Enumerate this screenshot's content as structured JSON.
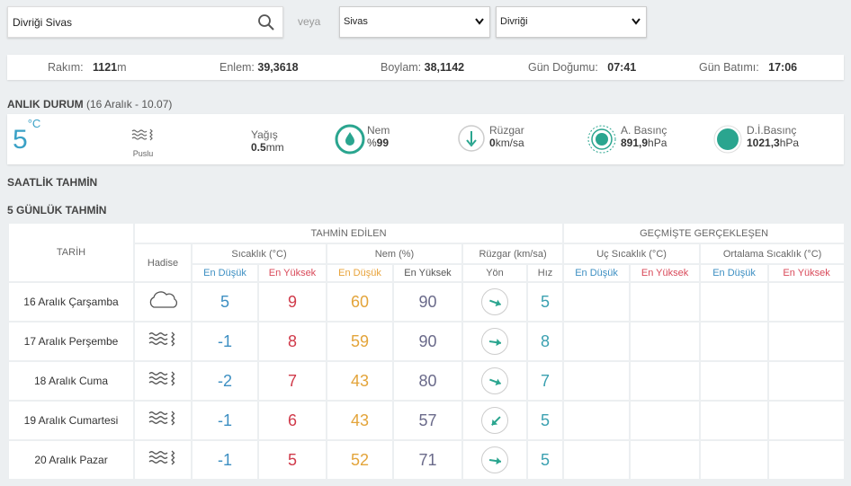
{
  "search": {
    "value": "Divriği Sivas"
  },
  "veya": "veya",
  "selects": {
    "city": "Sivas",
    "district": "Divriği"
  },
  "info": {
    "rakim_label": "Rakım:",
    "rakim_value": "1121",
    "rakim_unit": "m",
    "enlem_label": "Enlem:",
    "enlem_value": "39,3618",
    "boylam_label": "Boylam:",
    "boylam_value": "38,1142",
    "gundogumu_label": "Gün Doğumu:",
    "gundogumu_value": "07:41",
    "gunbatimi_label": "Gün Batımı:",
    "gunbatimi_value": "17:06"
  },
  "anlik": {
    "title": "ANLIK DURUM",
    "time": "(16 Aralık - 10.07)"
  },
  "current": {
    "temp": "5",
    "temp_unit": "°C",
    "condition": "Puslu",
    "yagis_label": "Yağış",
    "yagis_value": "0.5",
    "yagis_unit": "mm",
    "nem_label": "Nem",
    "nem_prefix": "%",
    "nem_value": "99",
    "ruzgar_label": "Rüzgar",
    "ruzgar_value": "0",
    "ruzgar_unit": "km/sa",
    "abasinc_label": "A. Basınç",
    "abasinc_value": "891,9",
    "abasinc_unit": "hPa",
    "dibasinc_label": "D.İ.Basınç",
    "dibasinc_value": "1021,3",
    "dibasinc_unit": "hPa"
  },
  "saatlik": "SAATLİK TAHMİN",
  "gunluk": "5 GÜNLÜK TAHMİN",
  "table": {
    "tahmin": "TAHMİN EDİLEN",
    "gecmis": "GEÇMİŞTE GERÇEKLEŞEN",
    "tarih": "TARİH",
    "hadise": "Hadise",
    "sicaklik": "Sıcaklık (°C)",
    "nem": "Nem (%)",
    "ruzgar": "Rüzgar (km/sa)",
    "uc": "Uç Sıcaklık (°C)",
    "ort": "Ortalama Sıcaklık (°C)",
    "en_dusuk": "En Düşük",
    "en_yuksek": "En Yüksek",
    "yon": "Yön",
    "hiz": "Hız"
  },
  "rows": [
    {
      "date": "16 Aralık Çarşamba",
      "icon": "cloud-icon",
      "tmin": "5",
      "tmax": "9",
      "hmin": "60",
      "hmax": "90",
      "dir": "east-southeast",
      "speed": "5"
    },
    {
      "date": "17 Aralık Perşembe",
      "icon": "fog-icon",
      "tmin": "-1",
      "tmax": "8",
      "hmin": "59",
      "hmax": "90",
      "dir": "east",
      "speed": "8"
    },
    {
      "date": "18 Aralık Cuma",
      "icon": "fog-icon",
      "tmin": "-2",
      "tmax": "7",
      "hmin": "43",
      "hmax": "80",
      "dir": "east-southeast",
      "speed": "7"
    },
    {
      "date": "19 Aralık Cumartesi",
      "icon": "fog-icon",
      "tmin": "-1",
      "tmax": "6",
      "hmin": "43",
      "hmax": "57",
      "dir": "southwest",
      "speed": "5"
    },
    {
      "date": "20 Aralık Pazar",
      "icon": "fog-icon",
      "tmin": "-1",
      "tmax": "5",
      "hmin": "52",
      "hmax": "71",
      "dir": "east",
      "speed": "5"
    }
  ]
}
